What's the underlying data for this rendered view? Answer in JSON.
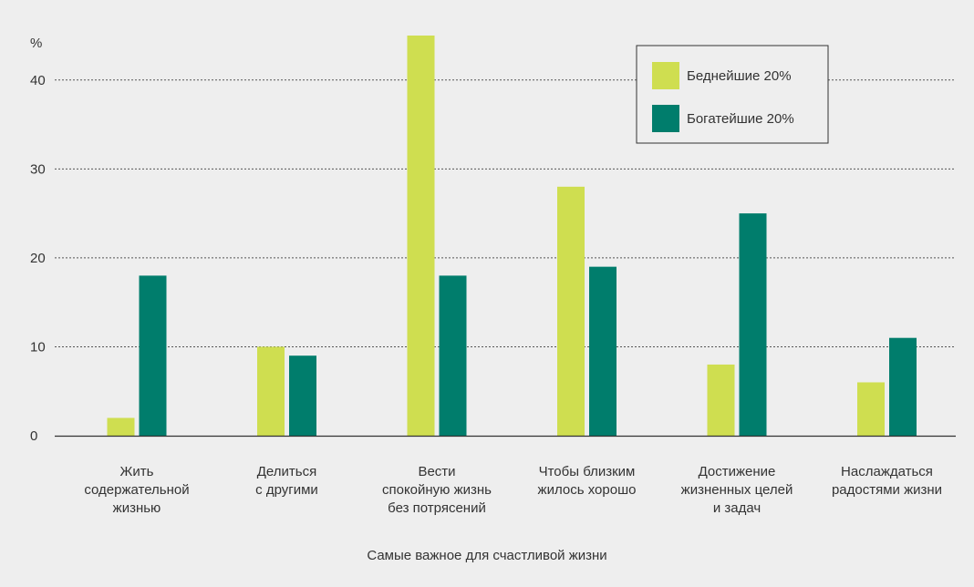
{
  "colors": {
    "background": "#eeeeee",
    "axis": "#333333",
    "grid": "#555555",
    "poorest": "#cfde50",
    "richest": "#007d6c",
    "legend_bg": "#eeeeee",
    "legend_border": "#333333"
  },
  "chart_data": {
    "type": "bar",
    "title": "",
    "xlabel": "Самые важное для счастливой жизни",
    "ylabel": "%",
    "ylim": [
      0,
      45
    ],
    "yticks": [
      0,
      10,
      20,
      30,
      40
    ],
    "grid": true,
    "legend_position": "top-right",
    "categories": [
      [
        "Жить",
        "содержательной",
        "жизнью"
      ],
      [
        "Делиться",
        "с другими"
      ],
      [
        "Вести",
        "спокойную жизнь",
        "без потрясений"
      ],
      [
        "Чтобы близким",
        "жилось хорошо"
      ],
      [
        "Достижение",
        "жизненных целей",
        "и задач"
      ],
      [
        "Наслаждаться",
        "радостями жизни"
      ]
    ],
    "series": [
      {
        "name": "Беднейшие 20%",
        "color": "#cfde50",
        "values": [
          2,
          10,
          45,
          28,
          8,
          6
        ]
      },
      {
        "name": "Богатейшие 20%",
        "color": "#007d6c",
        "values": [
          18,
          9,
          18,
          19,
          25,
          11
        ]
      }
    ]
  }
}
